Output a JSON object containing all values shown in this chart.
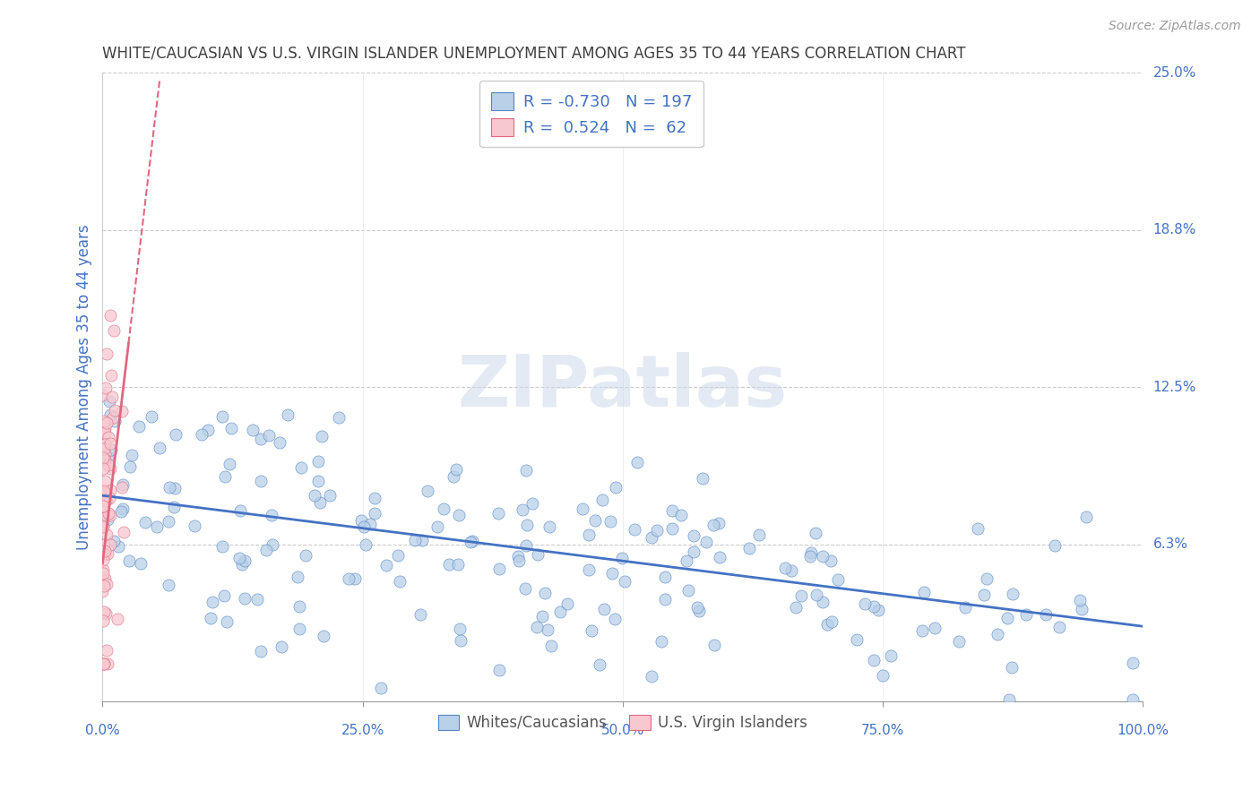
{
  "title": "WHITE/CAUCASIAN VS U.S. VIRGIN ISLANDER UNEMPLOYMENT AMONG AGES 35 TO 44 YEARS CORRELATION CHART",
  "source": "Source: ZipAtlas.com",
  "ylabel": "Unemployment Among Ages 35 to 44 years",
  "xlabel": "",
  "xlim": [
    0.0,
    1.0
  ],
  "ylim": [
    0.0,
    0.25
  ],
  "yticks": [
    0.0,
    0.0625,
    0.125,
    0.1875,
    0.25
  ],
  "ytick_labels": [
    "",
    "6.3%",
    "12.5%",
    "18.8%",
    "25.0%"
  ],
  "xticks": [
    0.0,
    0.25,
    0.5,
    0.75,
    1.0
  ],
  "xtick_labels": [
    "0.0%",
    "25.0%",
    "50.0%",
    "75.0%",
    "100.0%"
  ],
  "blue_R": -0.73,
  "blue_N": 197,
  "pink_R": 0.524,
  "pink_N": 62,
  "blue_color": "#b8d0e8",
  "blue_edge_color": "#5585c5",
  "blue_line_color": "#4472c4",
  "pink_color": "#f8c8d0",
  "pink_edge_color": "#e06880",
  "pink_line_color": "#e06880",
  "blue_scatter_alpha": 0.75,
  "pink_scatter_alpha": 0.75,
  "legend_label_blue": "Whites/Caucasians",
  "legend_label_pink": "U.S. Virgin Islanders",
  "watermark": "ZIPatlas",
  "title_color": "#404040",
  "axis_label_color": "#4472c4",
  "tick_label_color": "#4472c4",
  "background_color": "#ffffff",
  "grid_color": "#cccccc",
  "blue_trend_start_y": 0.082,
  "blue_trend_end_y": 0.03,
  "pink_trend_slope": 3.5,
  "pink_trend_intercept": 0.055
}
